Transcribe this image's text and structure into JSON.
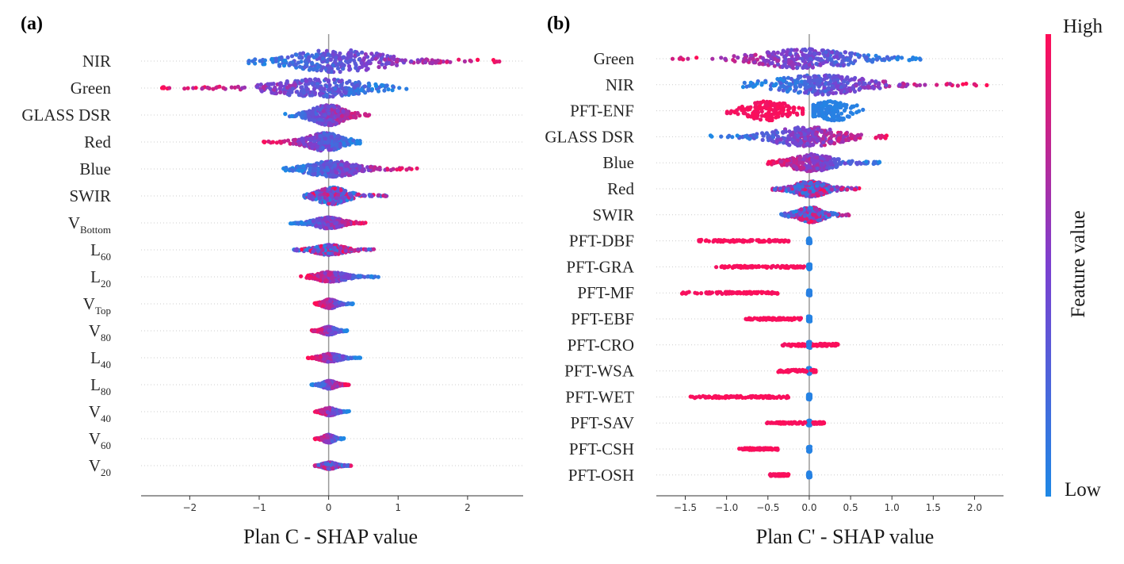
{
  "colorbar": {
    "high_label": "High",
    "low_label": "Low",
    "title": "Feature value",
    "low_color": "#1E88E5",
    "mid_color": "#7B40D0",
    "high_color": "#FF0D57"
  },
  "chart_data": [
    {
      "type": "scatter",
      "subtype": "shap-beeswarm",
      "panel_label": "(a)",
      "xlabel": "Plan C - SHAP value",
      "xlim": [
        -2.7,
        2.8
      ],
      "xticks": [
        "−2",
        "−1",
        "0",
        "1",
        "2"
      ],
      "xtick_values": [
        -2,
        -1,
        0,
        1,
        2
      ],
      "features": [
        {
          "name": "NIR",
          "sub": "",
          "min": -1.15,
          "max": 2.55,
          "lowSide": "neg",
          "width": 1.0,
          "style": "spread"
        },
        {
          "name": "Green",
          "sub": "",
          "min": -2.45,
          "max": 1.15,
          "lowSide": "pos",
          "width": 0.8,
          "style": "spread"
        },
        {
          "name": "GLASS DSR",
          "sub": "",
          "min": -0.65,
          "max": 0.65,
          "lowSide": "neg",
          "width": 0.9,
          "style": "spread"
        },
        {
          "name": "Red",
          "sub": "",
          "min": -0.95,
          "max": 0.45,
          "lowSide": "pos",
          "width": 0.8,
          "style": "spread"
        },
        {
          "name": "Blue",
          "sub": "",
          "min": -0.65,
          "max": 1.3,
          "lowSide": "neg",
          "width": 0.7,
          "style": "spread"
        },
        {
          "name": "SWIR",
          "sub": "",
          "min": -0.35,
          "max": 0.85,
          "lowSide": "mixed",
          "width": 0.75,
          "style": "spread"
        },
        {
          "name": "V",
          "sub": "Bottom",
          "min": -0.55,
          "max": 0.55,
          "lowSide": "neg",
          "width": 0.5,
          "style": "spread"
        },
        {
          "name": "L",
          "sub": "60",
          "min": -0.5,
          "max": 0.65,
          "lowSide": "mixed",
          "width": 0.45,
          "style": "spread"
        },
        {
          "name": "L",
          "sub": "20",
          "min": -0.4,
          "max": 0.72,
          "lowSide": "pos",
          "width": 0.45,
          "style": "spread"
        },
        {
          "name": "V",
          "sub": "Top",
          "min": -0.2,
          "max": 0.35,
          "lowSide": "pos",
          "width": 0.4,
          "style": "spread"
        },
        {
          "name": "V",
          "sub": "80",
          "min": -0.25,
          "max": 0.28,
          "lowSide": "pos",
          "width": 0.35,
          "style": "spread"
        },
        {
          "name": "L",
          "sub": "40",
          "min": -0.3,
          "max": 0.48,
          "lowSide": "pos",
          "width": 0.35,
          "style": "spread"
        },
        {
          "name": "L",
          "sub": "80",
          "min": -0.25,
          "max": 0.3,
          "lowSide": "neg",
          "width": 0.35,
          "style": "spread"
        },
        {
          "name": "V",
          "sub": "40",
          "min": -0.2,
          "max": 0.3,
          "lowSide": "pos",
          "width": 0.35,
          "style": "spread"
        },
        {
          "name": "V",
          "sub": "60",
          "min": -0.2,
          "max": 0.22,
          "lowSide": "pos",
          "width": 0.35,
          "style": "spread"
        },
        {
          "name": "V",
          "sub": "20",
          "min": -0.2,
          "max": 0.32,
          "lowSide": "mixed",
          "width": 0.3,
          "style": "spread"
        }
      ]
    },
    {
      "type": "scatter",
      "subtype": "shap-beeswarm",
      "panel_label": "(b)",
      "xlabel": "Plan C' - SHAP value",
      "xlim": [
        -1.85,
        2.35
      ],
      "xticks": [
        "−1.5",
        "−1.0",
        "−0.5",
        "0.0",
        "0.5",
        "1.0",
        "1.5",
        "2.0"
      ],
      "xtick_values": [
        -1.5,
        -1.0,
        -0.5,
        0.0,
        0.5,
        1.0,
        1.5,
        2.0
      ],
      "features": [
        {
          "name": "Green",
          "sub": "",
          "min": -1.7,
          "max": 1.35,
          "lowSide": "pos",
          "width": 0.9,
          "style": "spread"
        },
        {
          "name": "NIR",
          "sub": "",
          "min": -0.8,
          "max": 2.15,
          "lowSide": "neg",
          "width": 0.9,
          "style": "spread"
        },
        {
          "name": "PFT-ENF",
          "sub": "",
          "min": -1.0,
          "max": 0.65,
          "lowSide": "pos",
          "width": 0.9,
          "style": "split",
          "split": 0.1
        },
        {
          "name": "GLASS DSR",
          "sub": "",
          "min": -1.2,
          "max": 0.95,
          "lowSide": "neg",
          "width": 0.9,
          "style": "spread"
        },
        {
          "name": "Blue",
          "sub": "",
          "min": -0.55,
          "max": 0.85,
          "lowSide": "pos",
          "width": 0.8,
          "style": "spread"
        },
        {
          "name": "Red",
          "sub": "",
          "min": -0.45,
          "max": 0.62,
          "lowSide": "mixed",
          "width": 0.7,
          "style": "spread"
        },
        {
          "name": "SWIR",
          "sub": "",
          "min": -0.35,
          "max": 0.5,
          "lowSide": "mixed",
          "width": 0.7,
          "style": "spread"
        },
        {
          "name": "PFT-DBF",
          "sub": "",
          "min": -1.35,
          "max": -0.25,
          "lowSide": "zero",
          "width": 0.25,
          "style": "pft"
        },
        {
          "name": "PFT-GRA",
          "sub": "",
          "min": -1.15,
          "max": -0.05,
          "lowSide": "zero",
          "width": 0.25,
          "style": "pft"
        },
        {
          "name": "PFT-MF",
          "sub": "",
          "min": -1.55,
          "max": -0.35,
          "lowSide": "zero",
          "width": 0.25,
          "style": "pft"
        },
        {
          "name": "PFT-EBF",
          "sub": "",
          "min": -0.78,
          "max": -0.1,
          "lowSide": "zero",
          "width": 0.25,
          "style": "pft"
        },
        {
          "name": "PFT-CRO",
          "sub": "",
          "min": -0.35,
          "max": 0.35,
          "lowSide": "zero",
          "width": 0.3,
          "style": "pft"
        },
        {
          "name": "PFT-WSA",
          "sub": "",
          "min": -0.4,
          "max": 0.08,
          "lowSide": "zero",
          "width": 0.3,
          "style": "pft"
        },
        {
          "name": "PFT-WET",
          "sub": "",
          "min": -1.45,
          "max": -0.25,
          "lowSide": "zero",
          "width": 0.25,
          "style": "pft"
        },
        {
          "name": "PFT-SAV",
          "sub": "",
          "min": -0.55,
          "max": 0.18,
          "lowSide": "zero",
          "width": 0.25,
          "style": "pft"
        },
        {
          "name": "PFT-CSH",
          "sub": "",
          "min": -0.85,
          "max": -0.38,
          "lowSide": "zero",
          "width": 0.25,
          "style": "pft"
        },
        {
          "name": "PFT-OSH",
          "sub": "",
          "min": -0.48,
          "max": -0.25,
          "lowSide": "zero",
          "width": 0.25,
          "style": "pft"
        }
      ]
    }
  ]
}
